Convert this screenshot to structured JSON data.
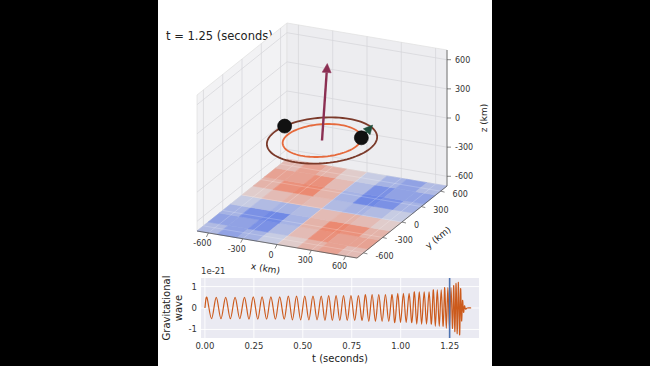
{
  "chart_data": [
    {
      "type": "orbit3d",
      "title": "t = 1.25 (seconds)",
      "x_label": "x (km)",
      "y_label": "y (km)",
      "z_label": "z (km)",
      "xlim": [
        -700,
        700
      ],
      "ylim": [
        -700,
        700
      ],
      "zlim": [
        -700,
        700
      ],
      "xticks": [
        -600,
        -300,
        0,
        300,
        600
      ],
      "yticks": [
        -600,
        -300,
        0,
        300,
        600
      ],
      "zticks": [
        -600,
        -300,
        0,
        300,
        600
      ],
      "grid": true,
      "grid_x": [
        -700,
        -525,
        -350,
        -175,
        0,
        175,
        350,
        525,
        700
      ],
      "grid_y": [
        -700,
        -525,
        -350,
        -175,
        0,
        175,
        350,
        525,
        700
      ],
      "cells": [
        [
          -0.4,
          -0.7,
          -0.5,
          -0.2,
          0.2,
          0.5,
          0.7,
          0.4
        ],
        [
          -0.7,
          -0.7,
          -0.9,
          -0.4,
          0.4,
          0.9,
          0.7,
          0.7
        ],
        [
          -0.5,
          -0.9,
          -1.0,
          -0.5,
          0.5,
          1.0,
          0.9,
          0.5
        ],
        [
          -0.2,
          -0.4,
          -0.5,
          -0.4,
          0.4,
          0.5,
          0.4,
          0.2
        ],
        [
          0.2,
          0.4,
          0.5,
          0.4,
          -0.4,
          -0.5,
          -0.4,
          -0.2
        ],
        [
          0.5,
          0.9,
          1.0,
          0.5,
          -0.5,
          -1.0,
          -0.9,
          -0.5
        ],
        [
          0.7,
          0.7,
          0.9,
          0.4,
          -0.4,
          -0.9,
          -0.7,
          -0.7
        ],
        [
          0.4,
          0.7,
          0.5,
          0.2,
          -0.2,
          -0.5,
          -0.7,
          -0.4
        ]
      ],
      "crange": [
        -1.2,
        1.2
      ],
      "bodies": [
        {
          "x": -400,
          "y": 130,
          "z": 0
        },
        {
          "x": 260,
          "y": 150,
          "z": 0
        }
      ]
    },
    {
      "type": "line",
      "x_label": "t (seconds)",
      "y_label": "Gravitational wave",
      "y_offset_label": "1e-21",
      "xlim": [
        -0.02,
        1.4
      ],
      "ylim": [
        -1.4,
        1.4
      ],
      "xticks": [
        {
          "value": 0,
          "label": "0.00"
        },
        {
          "value": 0.25,
          "label": "0.25"
        },
        {
          "value": 0.5,
          "label": "0.50"
        },
        {
          "value": 0.75,
          "label": "0.75"
        },
        {
          "value": 1,
          "label": "1.00"
        },
        {
          "value": 1.25,
          "label": "1.25"
        }
      ],
      "yticks": [
        -1,
        0,
        1
      ],
      "grid": true,
      "color": "#cc5a1c",
      "vline": 1.25,
      "x": [
        0.0,
        0.01,
        0.034,
        0.058,
        0.082,
        0.106,
        0.13,
        0.154,
        0.178,
        0.202,
        0.225,
        0.247,
        0.27,
        0.292,
        0.315,
        0.337,
        0.36,
        0.382,
        0.405,
        0.426,
        0.447,
        0.468,
        0.489,
        0.51,
        0.531,
        0.552,
        0.573,
        0.594,
        0.613,
        0.632,
        0.651,
        0.67,
        0.689,
        0.708,
        0.727,
        0.746,
        0.765,
        0.784,
        0.803,
        0.82,
        0.837,
        0.854,
        0.871,
        0.888,
        0.905,
        0.922,
        0.939,
        0.956,
        0.97,
        0.985,
        0.999,
        1.014,
        1.028,
        1.043,
        1.057,
        1.07,
        1.082,
        1.095,
        1.107,
        1.12,
        1.132,
        1.145,
        1.157,
        1.167,
        1.177,
        1.187,
        1.197,
        1.207,
        1.217,
        1.225,
        1.233,
        1.241,
        1.249,
        1.257,
        1.265,
        1.271,
        1.277,
        1.283,
        1.289,
        1.295,
        1.301,
        1.306,
        1.311,
        1.316,
        1.321,
        1.326,
        1.331,
        1.34,
        1.36
      ],
      "values": [
        0,
        0.5,
        -0.5,
        0.5,
        -0.5,
        0.5,
        -0.5,
        0.5,
        -0.5,
        0.5,
        -0.52,
        0.52,
        -0.52,
        0.52,
        -0.52,
        0.52,
        -0.52,
        0.52,
        -0.52,
        0.55,
        -0.55,
        0.55,
        -0.55,
        0.55,
        -0.55,
        0.55,
        -0.55,
        0.55,
        -0.58,
        0.58,
        -0.58,
        0.58,
        -0.58,
        0.58,
        -0.58,
        0.58,
        -0.58,
        0.58,
        -0.58,
        0.62,
        -0.62,
        0.62,
        -0.62,
        0.62,
        -0.62,
        0.62,
        -0.62,
        0.62,
        -0.68,
        0.68,
        -0.68,
        0.68,
        -0.68,
        0.68,
        -0.68,
        0.75,
        -0.75,
        0.75,
        -0.75,
        0.75,
        -0.75,
        0.75,
        -0.75,
        0.85,
        -0.85,
        0.85,
        -0.85,
        0.85,
        -0.85,
        0.95,
        -0.95,
        0.95,
        -0.95,
        0.95,
        -0.95,
        1.05,
        -1.1,
        1.15,
        -1.2,
        1.2,
        -1.25,
        0.9,
        -0.6,
        0.35,
        -0.2,
        0.1,
        -0.05,
        0,
        0
      ]
    }
  ]
}
